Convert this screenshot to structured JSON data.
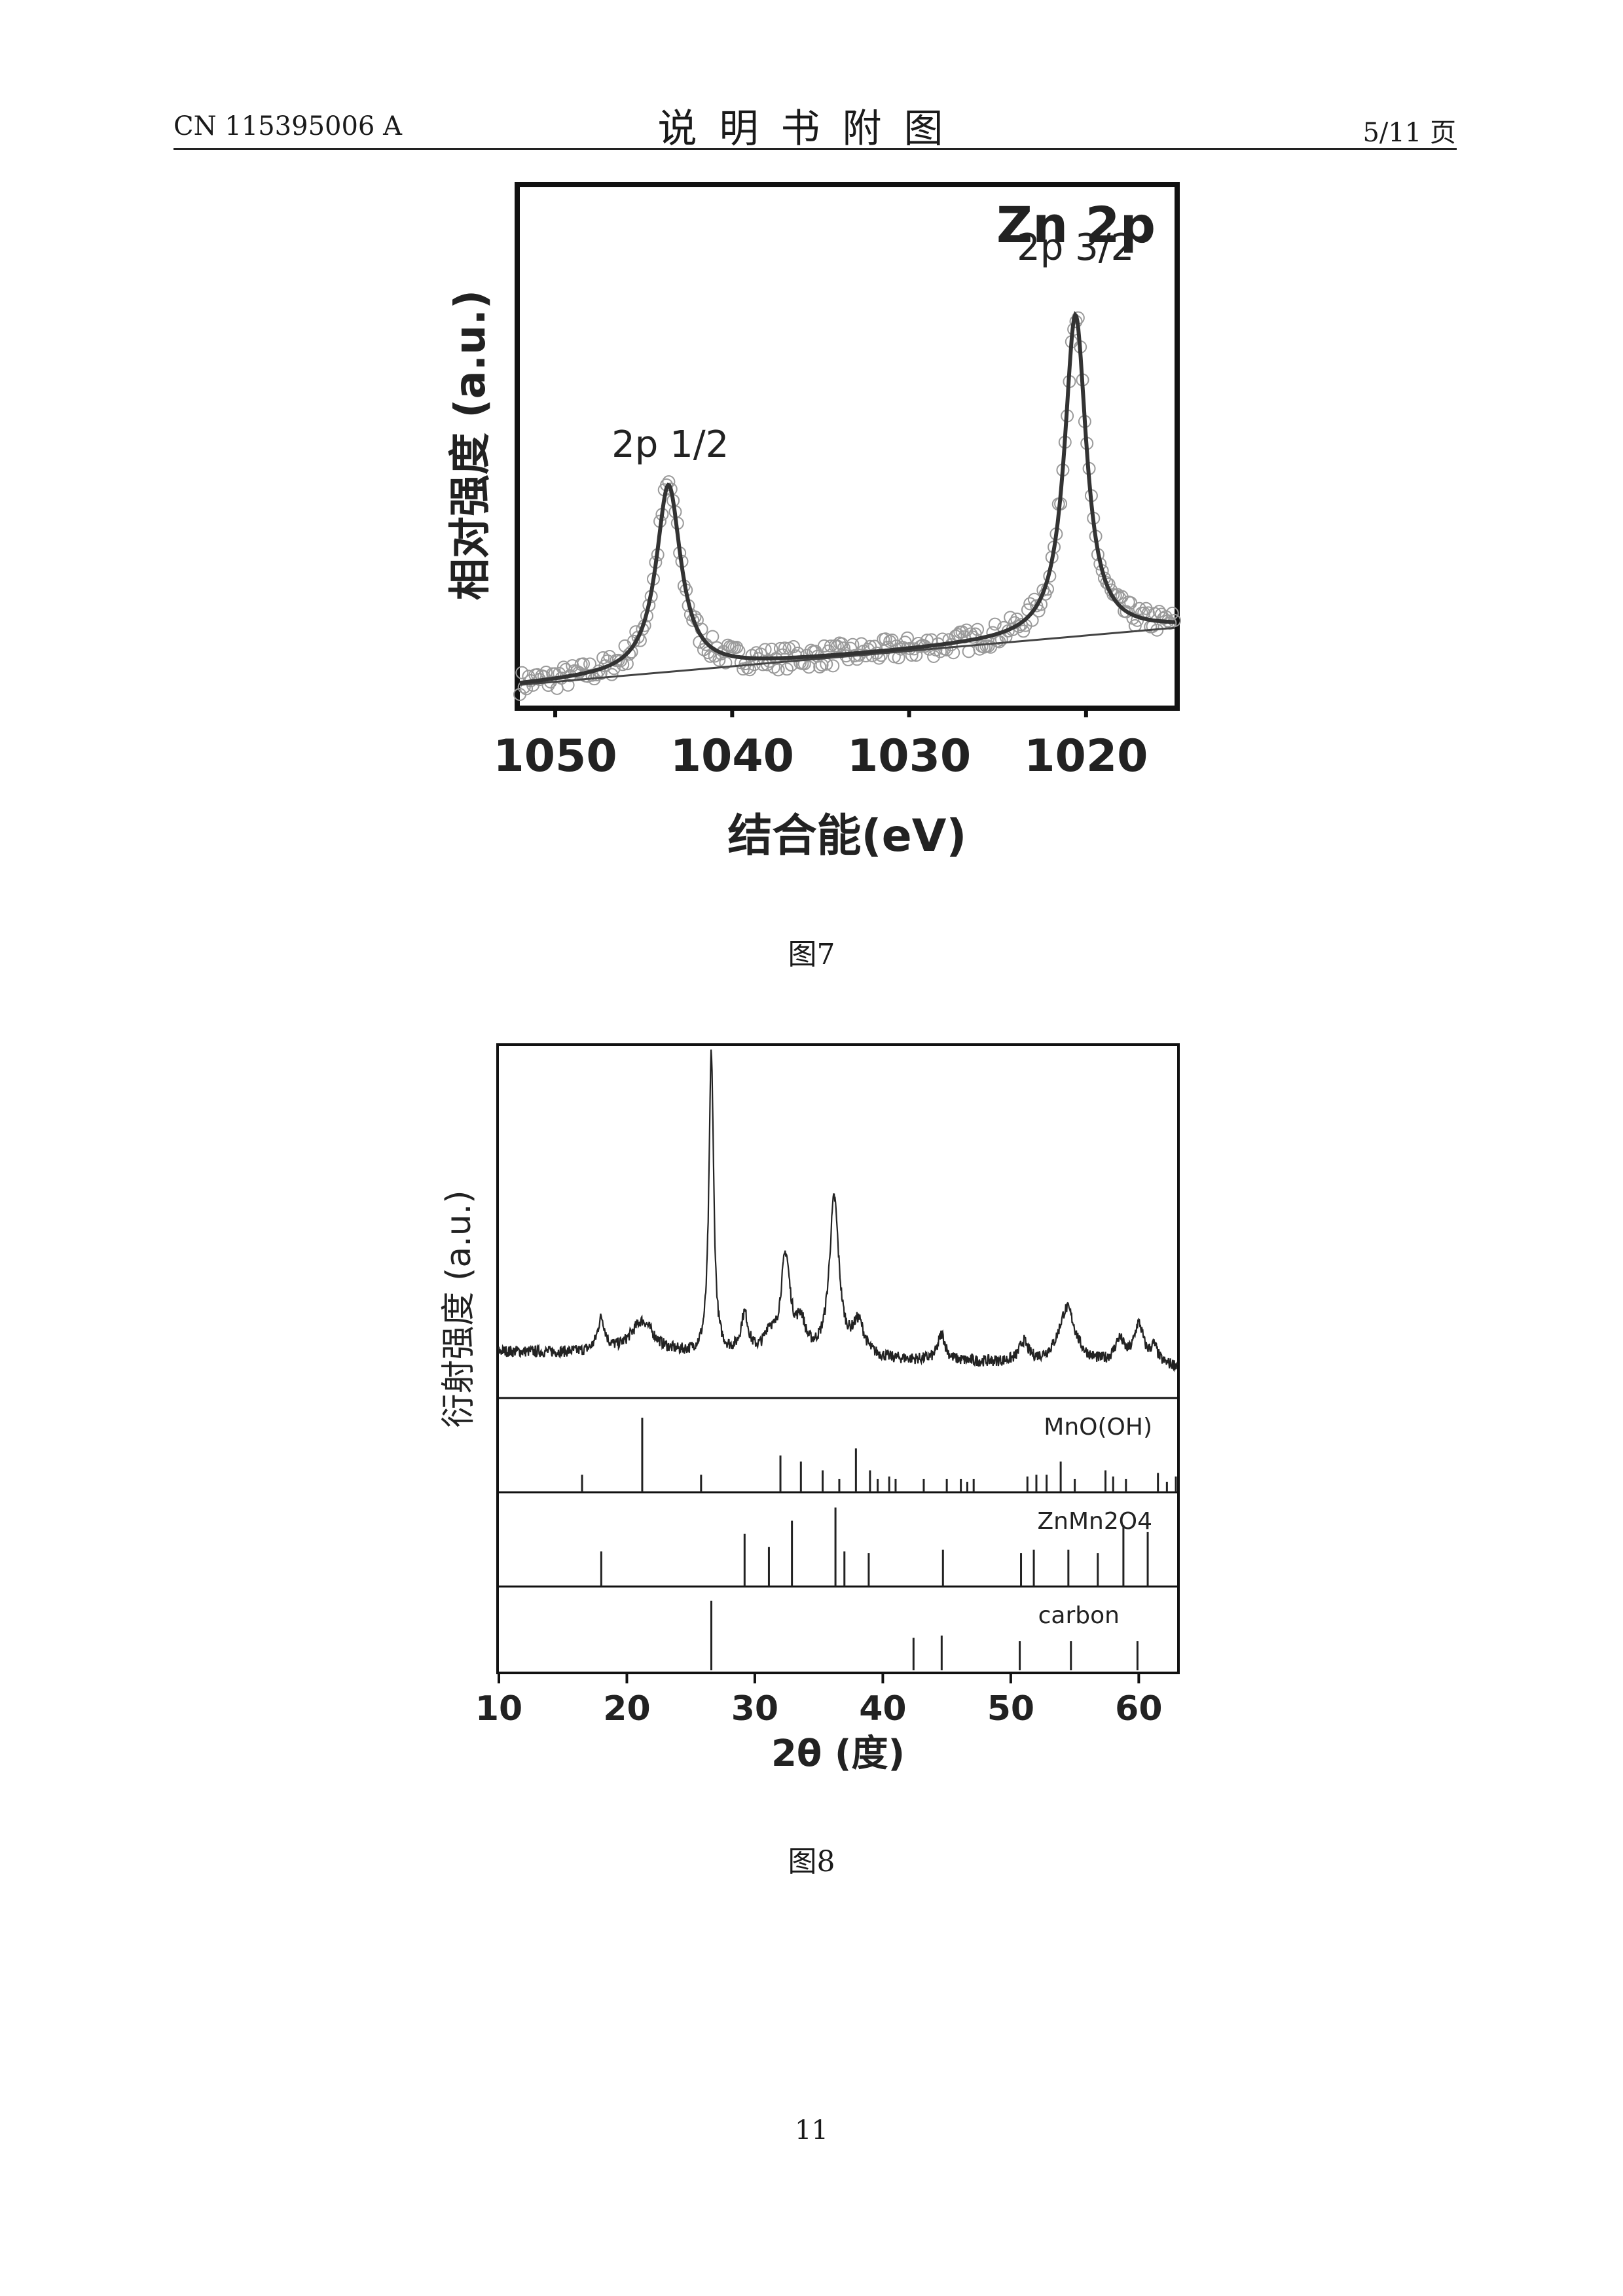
{
  "header": {
    "left": "CN 115395006 A",
    "center": "说明书附图",
    "right": "5/11 页"
  },
  "figures": [
    {
      "caption": "图7",
      "chart_data": {
        "type": "line",
        "title": "Zn 2p",
        "xlabel": "结合能(eV)",
        "ylabel": "相对强度 (a.u.)",
        "xlim": [
          1052,
          1015
        ],
        "ylim": [
          0,
          1
        ],
        "x_ticks": [
          "1050",
          "1040",
          "1030",
          "1020"
        ],
        "x_tick_values": [
          1050,
          1040,
          1030,
          1020
        ],
        "annotations": [
          {
            "text": "2p 1/2",
            "x": 1043.5,
            "y": 0.48
          },
          {
            "text": "2p 3/2",
            "x": 1020.6,
            "y": 0.86
          }
        ],
        "peaks": [
          {
            "center": 1043.6,
            "height": 0.36,
            "width": 0.85
          },
          {
            "center": 1020.6,
            "height": 0.62,
            "width": 0.75
          }
        ],
        "series": [
          {
            "style": "fit"
          },
          {
            "style": "background"
          },
          {
            "style": "scatter"
          }
        ],
        "grid": false
      }
    },
    {
      "caption": "图8",
      "chart_data": {
        "type": "line",
        "xlabel": "2θ (度)",
        "ylabel": "衍射强度 (a.u.)",
        "xlim": [
          10,
          63
        ],
        "x_ticks": [
          "10",
          "20",
          "30",
          "40",
          "50",
          "60"
        ],
        "x_tick_values": [
          10,
          20,
          30,
          40,
          50,
          60
        ],
        "grid": false,
        "pattern_peaks": [
          {
            "pos": 18.0,
            "h": 0.1,
            "w": 0.35
          },
          {
            "pos": 21.2,
            "h": 0.1,
            "w": 1.1
          },
          {
            "pos": 26.6,
            "h": 0.92,
            "w": 0.22
          },
          {
            "pos": 29.2,
            "h": 0.12,
            "w": 0.35
          },
          {
            "pos": 31.1,
            "h": 0.06,
            "w": 0.4
          },
          {
            "pos": 32.4,
            "h": 0.3,
            "w": 0.45
          },
          {
            "pos": 33.6,
            "h": 0.09,
            "w": 0.4
          },
          {
            "pos": 36.2,
            "h": 0.48,
            "w": 0.45
          },
          {
            "pos": 38.1,
            "h": 0.1,
            "w": 0.55
          },
          {
            "pos": 44.6,
            "h": 0.08,
            "w": 0.35
          },
          {
            "pos": 51.0,
            "h": 0.06,
            "w": 0.4
          },
          {
            "pos": 54.4,
            "h": 0.17,
            "w": 0.8
          },
          {
            "pos": 58.5,
            "h": 0.07,
            "w": 0.45
          },
          {
            "pos": 60.0,
            "h": 0.12,
            "w": 0.45
          },
          {
            "pos": 61.2,
            "h": 0.05,
            "w": 0.35
          }
        ],
        "references": [
          {
            "name": "MnO(OH)",
            "lines": [
              [
                16.5,
                0.2
              ],
              [
                21.2,
                0.85
              ],
              [
                25.8,
                0.2
              ],
              [
                32.0,
                0.42
              ],
              [
                33.6,
                0.35
              ],
              [
                35.3,
                0.25
              ],
              [
                36.6,
                0.15
              ],
              [
                37.9,
                0.5
              ],
              [
                39.0,
                0.25
              ],
              [
                39.6,
                0.15
              ],
              [
                40.5,
                0.18
              ],
              [
                41.0,
                0.15
              ],
              [
                43.2,
                0.15
              ],
              [
                45.0,
                0.15
              ],
              [
                46.1,
                0.15
              ],
              [
                46.6,
                0.12
              ],
              [
                47.1,
                0.15
              ],
              [
                51.3,
                0.18
              ],
              [
                52.0,
                0.2
              ],
              [
                52.8,
                0.2
              ],
              [
                53.9,
                0.35
              ],
              [
                55.0,
                0.15
              ],
              [
                57.4,
                0.25
              ],
              [
                58.0,
                0.18
              ],
              [
                59.0,
                0.15
              ],
              [
                61.5,
                0.22
              ],
              [
                62.2,
                0.12
              ],
              [
                62.9,
                0.18
              ]
            ]
          },
          {
            "name": "ZnMn2O4",
            "lines": [
              [
                18.0,
                0.4
              ],
              [
                29.2,
                0.6
              ],
              [
                31.1,
                0.45
              ],
              [
                32.9,
                0.75
              ],
              [
                36.3,
                0.9
              ],
              [
                37.0,
                0.4
              ],
              [
                38.9,
                0.38
              ],
              [
                44.7,
                0.42
              ],
              [
                50.8,
                0.38
              ],
              [
                51.8,
                0.42
              ],
              [
                54.5,
                0.42
              ],
              [
                56.8,
                0.38
              ],
              [
                58.8,
                0.7
              ],
              [
                60.7,
                0.62
              ]
            ]
          },
          {
            "name": "carbon",
            "lines": [
              [
                26.6,
                0.9
              ],
              [
                42.4,
                0.42
              ],
              [
                44.6,
                0.45
              ],
              [
                50.7,
                0.38
              ],
              [
                54.7,
                0.38
              ],
              [
                59.9,
                0.38
              ]
            ]
          }
        ]
      }
    }
  ],
  "page_number": "11"
}
